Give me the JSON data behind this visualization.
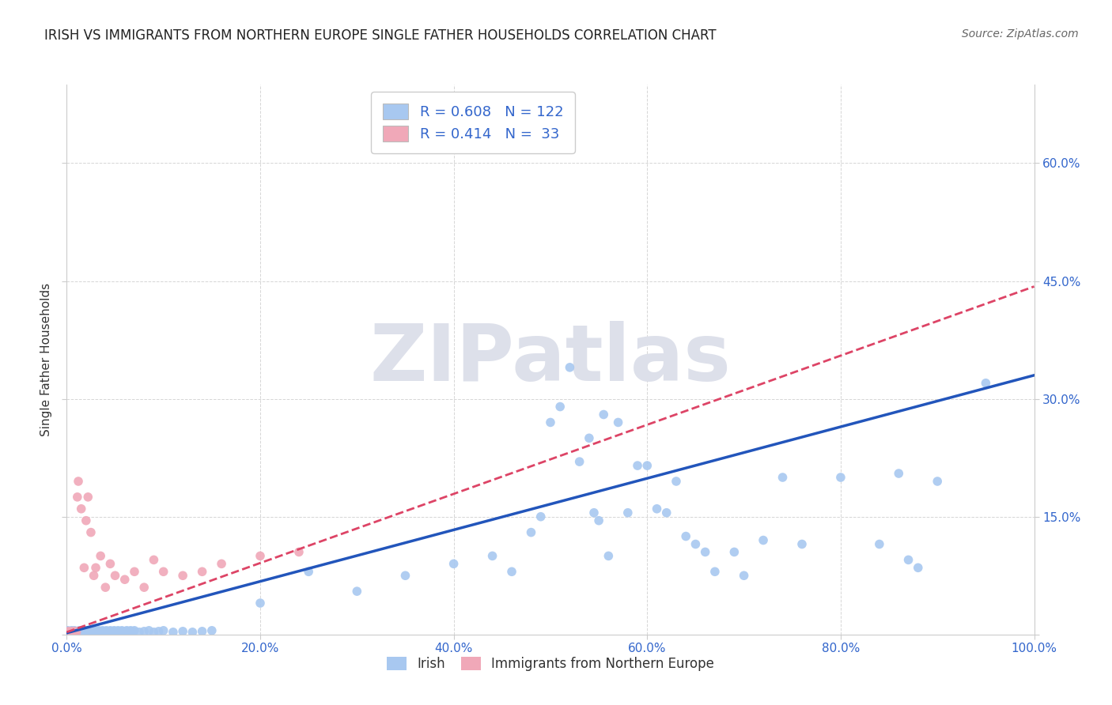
{
  "title": "IRISH VS IMMIGRANTS FROM NORTHERN EUROPE SINGLE FATHER HOUSEHOLDS CORRELATION CHART",
  "source": "Source: ZipAtlas.com",
  "ylabel": "Single Father Households",
  "legend_label1": "Irish",
  "legend_label2": "Immigrants from Northern Europe",
  "r1": 0.608,
  "n1": 122,
  "r2": 0.414,
  "n2": 33,
  "color_blue": "#a8c8f0",
  "color_pink": "#f0a8b8",
  "line_blue": "#2255bb",
  "line_pink": "#dd4466",
  "xlim": [
    0,
    1.0
  ],
  "ylim": [
    0,
    0.7
  ],
  "xtick_vals": [
    0.0,
    0.2,
    0.4,
    0.6,
    0.8,
    1.0
  ],
  "ytick_vals": [
    0.0,
    0.15,
    0.3,
    0.45,
    0.6
  ],
  "background_color": "#ffffff",
  "grid_color": "#cccccc",
  "watermark": "ZIPatlas",
  "watermark_color": "#dde0ea",
  "blue_x": [
    0.001,
    0.002,
    0.003,
    0.004,
    0.005,
    0.006,
    0.007,
    0.008,
    0.009,
    0.01,
    0.011,
    0.012,
    0.013,
    0.014,
    0.015,
    0.016,
    0.017,
    0.018,
    0.019,
    0.02,
    0.021,
    0.022,
    0.023,
    0.024,
    0.025,
    0.026,
    0.027,
    0.028,
    0.029,
    0.03,
    0.031,
    0.032,
    0.033,
    0.034,
    0.035,
    0.036,
    0.037,
    0.038,
    0.039,
    0.04,
    0.041,
    0.042,
    0.043,
    0.044,
    0.045,
    0.046,
    0.047,
    0.048,
    0.049,
    0.05,
    0.051,
    0.052,
    0.053,
    0.054,
    0.055,
    0.056,
    0.057,
    0.058,
    0.059,
    0.06,
    0.061,
    0.062,
    0.063,
    0.064,
    0.065,
    0.066,
    0.067,
    0.068,
    0.069,
    0.07,
    0.075,
    0.08,
    0.085,
    0.09,
    0.095,
    0.1,
    0.11,
    0.12,
    0.13,
    0.14,
    0.15,
    0.2,
    0.25,
    0.3,
    0.35,
    0.4,
    0.44,
    0.46,
    0.48,
    0.49,
    0.5,
    0.51,
    0.52,
    0.53,
    0.54,
    0.545,
    0.55,
    0.555,
    0.56,
    0.57,
    0.58,
    0.59,
    0.6,
    0.61,
    0.62,
    0.63,
    0.64,
    0.65,
    0.66,
    0.67,
    0.69,
    0.7,
    0.72,
    0.74,
    0.76,
    0.8,
    0.84,
    0.86,
    0.87,
    0.88,
    0.9,
    0.95
  ],
  "blue_y": [
    0.005,
    0.003,
    0.004,
    0.003,
    0.005,
    0.004,
    0.003,
    0.005,
    0.004,
    0.003,
    0.004,
    0.003,
    0.005,
    0.004,
    0.003,
    0.004,
    0.005,
    0.003,
    0.004,
    0.003,
    0.005,
    0.004,
    0.003,
    0.004,
    0.005,
    0.003,
    0.004,
    0.003,
    0.005,
    0.004,
    0.003,
    0.004,
    0.005,
    0.003,
    0.004,
    0.003,
    0.005,
    0.004,
    0.003,
    0.004,
    0.005,
    0.003,
    0.004,
    0.003,
    0.005,
    0.004,
    0.003,
    0.004,
    0.005,
    0.003,
    0.004,
    0.003,
    0.005,
    0.004,
    0.003,
    0.004,
    0.005,
    0.003,
    0.004,
    0.003,
    0.004,
    0.005,
    0.003,
    0.004,
    0.003,
    0.005,
    0.004,
    0.003,
    0.004,
    0.005,
    0.003,
    0.004,
    0.005,
    0.003,
    0.004,
    0.005,
    0.003,
    0.004,
    0.003,
    0.004,
    0.005,
    0.04,
    0.08,
    0.055,
    0.075,
    0.09,
    0.1,
    0.08,
    0.13,
    0.15,
    0.27,
    0.29,
    0.34,
    0.22,
    0.25,
    0.155,
    0.145,
    0.28,
    0.1,
    0.27,
    0.155,
    0.215,
    0.215,
    0.16,
    0.155,
    0.195,
    0.125,
    0.115,
    0.105,
    0.08,
    0.105,
    0.075,
    0.12,
    0.2,
    0.115,
    0.2,
    0.115,
    0.205,
    0.095,
    0.085,
    0.195,
    0.32
  ],
  "pink_x": [
    0.001,
    0.002,
    0.003,
    0.004,
    0.005,
    0.006,
    0.007,
    0.008,
    0.009,
    0.01,
    0.011,
    0.012,
    0.015,
    0.018,
    0.02,
    0.022,
    0.025,
    0.028,
    0.03,
    0.035,
    0.04,
    0.045,
    0.05,
    0.06,
    0.07,
    0.08,
    0.09,
    0.1,
    0.12,
    0.14,
    0.16,
    0.2,
    0.24
  ],
  "pink_y": [
    0.003,
    0.004,
    0.003,
    0.002,
    0.003,
    0.004,
    0.002,
    0.003,
    0.004,
    0.003,
    0.175,
    0.195,
    0.16,
    0.085,
    0.145,
    0.175,
    0.13,
    0.075,
    0.085,
    0.1,
    0.06,
    0.09,
    0.075,
    0.07,
    0.08,
    0.06,
    0.095,
    0.08,
    0.075,
    0.08,
    0.09,
    0.1,
    0.105
  ],
  "blue_line_x": [
    0.0,
    1.0
  ],
  "blue_line_y": [
    0.002,
    0.33
  ],
  "pink_line_x": [
    0.0,
    0.3
  ],
  "pink_line_y": [
    0.003,
    0.135
  ]
}
